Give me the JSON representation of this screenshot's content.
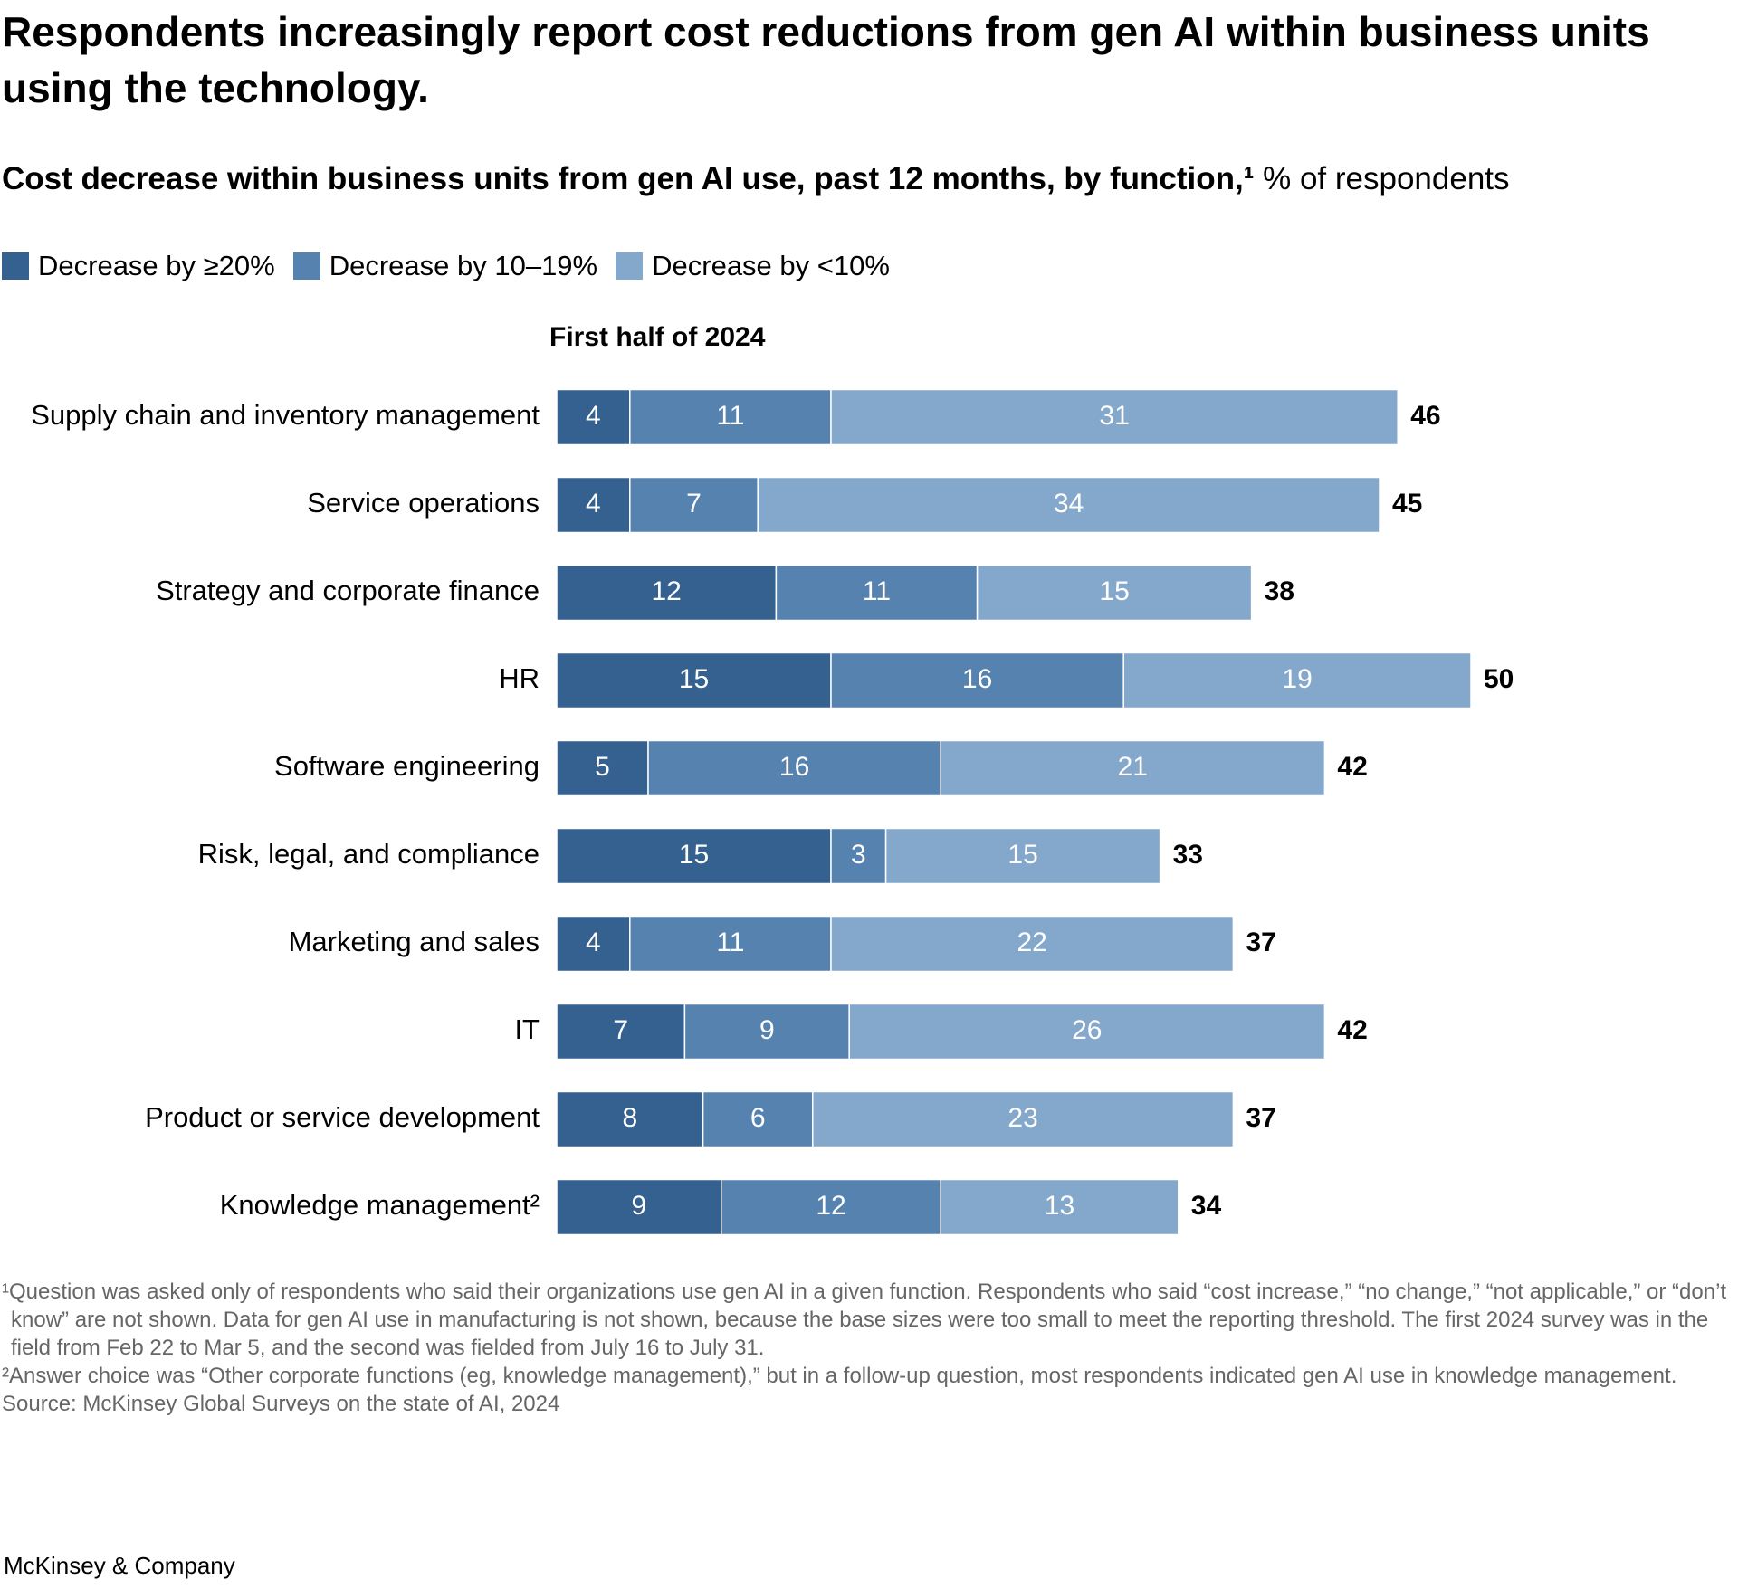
{
  "chart_data": {
    "type": "stacked-bar-horizontal",
    "title": "Respondents increasingly report cost reductions from gen AI within business units using the technology.",
    "subtitle": "Cost decrease within business units from gen AI use, past 12 months, by function,¹",
    "unit": "% of respondents",
    "panel_title": "First half of 2024",
    "categories": [
      "Supply chain and inventory management",
      "Service operations",
      "Strategy and corporate finance",
      "HR",
      "Software engineering",
      "Risk, legal, and compliance",
      "Marketing and sales",
      "IT",
      "Product or service development",
      "Knowledge management²"
    ],
    "series": [
      {
        "name": "Decrease by ≥20%",
        "color": "#34618f",
        "values": [
          4,
          4,
          12,
          15,
          5,
          15,
          4,
          7,
          8,
          9
        ]
      },
      {
        "name": "Decrease by 10–19%",
        "color": "#5682b0",
        "values": [
          11,
          7,
          11,
          16,
          16,
          3,
          11,
          9,
          6,
          12
        ]
      },
      {
        "name": "Decrease by <10%",
        "color": "#84a7cc",
        "values": [
          31,
          34,
          15,
          19,
          21,
          15,
          22,
          26,
          23,
          13
        ]
      }
    ],
    "totals": [
      46,
      45,
      38,
      50,
      42,
      33,
      37,
      42,
      37,
      34
    ]
  },
  "footnotes": [
    "¹Question was asked only of respondents who said their organizations use gen AI in a given function. Respondents who said “cost increase,” “no change,” “not applicable,” or “don’t know” are not shown. Data for gen AI use in manufacturing is not shown, because the base sizes were too small to meet the reporting threshold. The first 2024 survey was in the field from Feb 22 to Mar 5, and the second was fielded from July 16 to July 31.",
    "²Answer choice was “Other corporate functions (eg, knowledge management),” but in a follow-up question, most respondents indicated gen AI use in knowledge management."
  ],
  "source": "Source: McKinsey Global Surveys on the state of AI, 2024",
  "brand": "McKinsey & Company"
}
